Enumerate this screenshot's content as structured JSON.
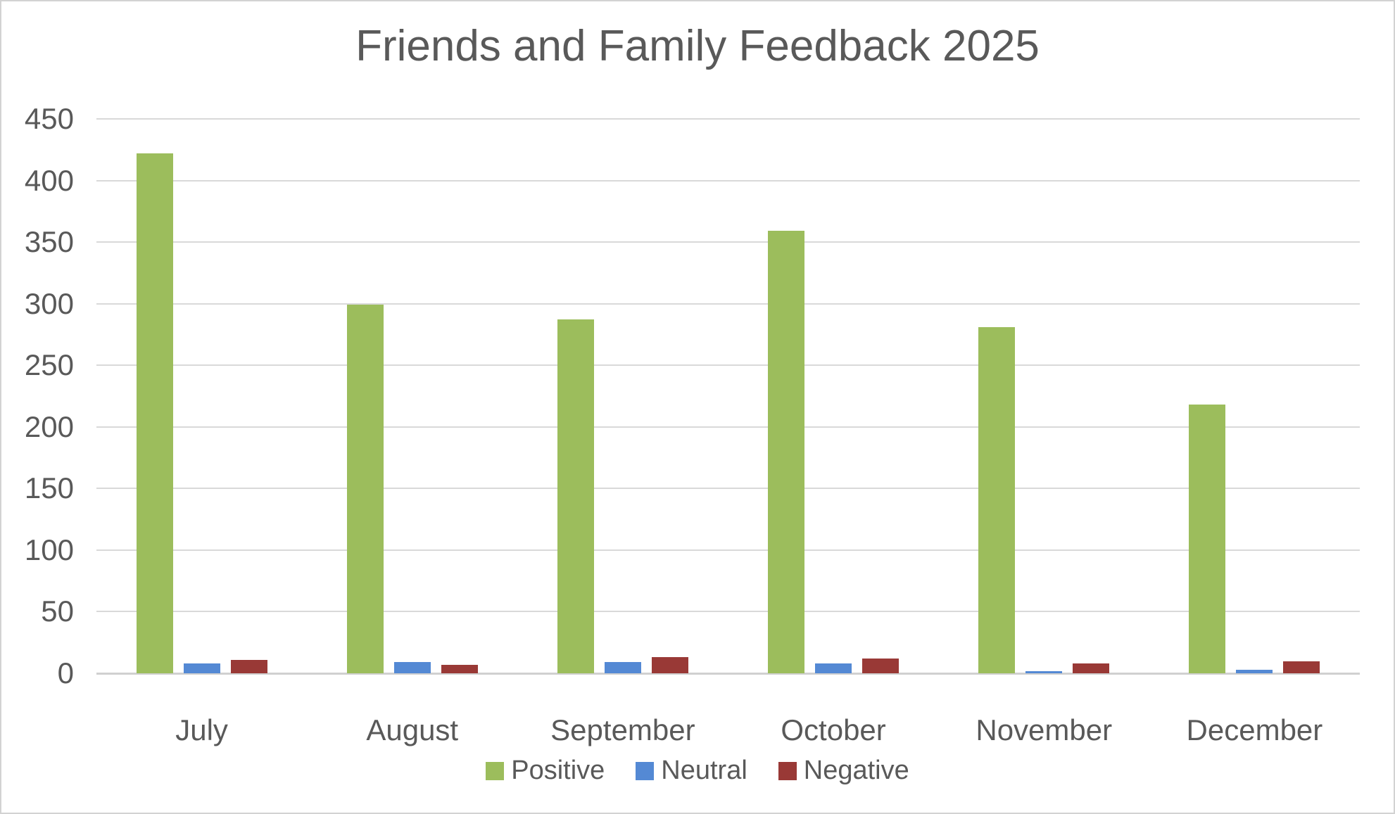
{
  "chart_data": {
    "type": "bar",
    "title": "Friends and Family Feedback 2025",
    "categories": [
      "July",
      "August",
      "September",
      "October",
      "November",
      "December"
    ],
    "series": [
      {
        "name": "Positive",
        "color": "#9CBD5C",
        "values": [
          422,
          299,
          287,
          359,
          281,
          218
        ]
      },
      {
        "name": "Neutral",
        "color": "#5489D4",
        "values": [
          8,
          9,
          9,
          8,
          2,
          3
        ]
      },
      {
        "name": "Negative",
        "color": "#993936",
        "values": [
          11,
          7,
          13,
          12,
          8,
          10
        ]
      }
    ],
    "xlabel": "",
    "ylabel": "",
    "ylim": [
      0,
      450
    ],
    "ytick_step": 50,
    "yticks": [
      0,
      50,
      100,
      150,
      200,
      250,
      300,
      350,
      400,
      450
    ],
    "grid": true,
    "legend_position": "bottom"
  },
  "colors": {
    "text": "#595959",
    "gridline": "#D9D9D9",
    "baseline": "#D0D0D0",
    "background": "#FFFFFF",
    "canvas_border": "#D2D2D2"
  }
}
